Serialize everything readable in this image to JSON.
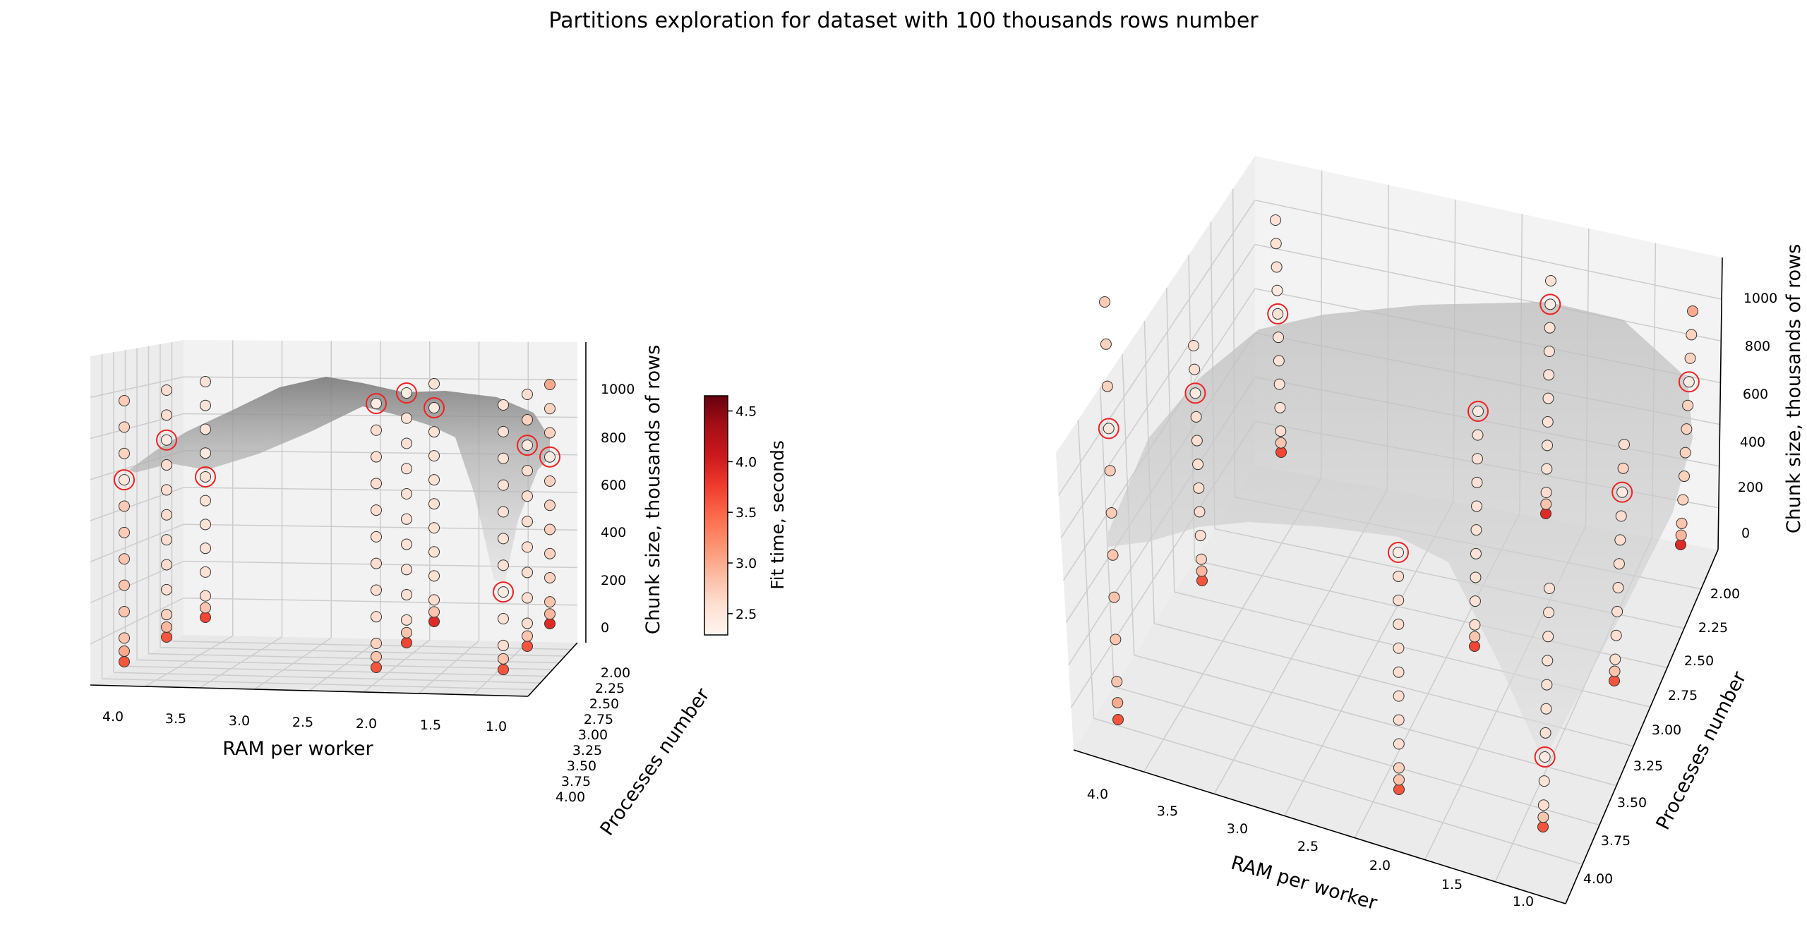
{
  "title": "Partitions exploration for dataset with 100 thousands rows number",
  "chart_data": {
    "type": "scatter3d",
    "title": "Partitions exploration for dataset with 100 thousands rows number",
    "xlabel": "RAM per worker",
    "ylabel": "Processes number",
    "zlabel": "Chunk size, thousands of rows",
    "colorbar_label": "Fit time, seconds",
    "colormap": "Reds",
    "color_range": [
      2.29,
      4.65
    ],
    "colorbar_ticks": [
      "2.5",
      "3.0",
      "3.5",
      "4.0",
      "4.5"
    ],
    "highlight_color": "#ee2222",
    "surface_color": "#808080",
    "x_ticks": [
      "4.0",
      "3.5",
      "3.0",
      "2.5",
      "2.0",
      "1.5",
      "1.0"
    ],
    "y_ticks": [
      "2.00",
      "2.25",
      "2.50",
      "2.75",
      "3.00",
      "3.25",
      "3.50",
      "3.75",
      "4.00"
    ],
    "z_ticks": [
      "0",
      "200",
      "400",
      "600",
      "800",
      "1000"
    ],
    "chunk_sizes": [
      10,
      50,
      100,
      200,
      300,
      400,
      500,
      600,
      700,
      800,
      900,
      1000
    ],
    "columns": [
      {
        "ram": 4,
        "processes": 4,
        "best_chunk": 700,
        "fit_times": [
          3.6,
          3.0,
          2.8,
          2.8,
          2.8,
          2.8,
          2.75,
          2.75,
          2.5,
          2.7,
          2.7,
          2.75
        ]
      },
      {
        "ram": 4,
        "processes": 3,
        "best_chunk": 800,
        "fit_times": [
          3.6,
          2.9,
          2.7,
          2.6,
          2.6,
          2.6,
          2.6,
          2.6,
          2.6,
          2.45,
          2.6,
          2.6
        ]
      },
      {
        "ram": 4,
        "processes": 2,
        "best_chunk": 600,
        "fit_times": [
          3.7,
          2.8,
          2.6,
          2.55,
          2.55,
          2.55,
          2.55,
          2.55,
          2.45,
          2.55,
          2.55,
          2.55
        ]
      },
      {
        "ram": 2,
        "processes": 4,
        "best_chunk": 1000,
        "fit_times": [
          3.6,
          2.8,
          2.7,
          2.6,
          2.6,
          2.6,
          2.6,
          2.6,
          2.6,
          2.6,
          2.6,
          2.45
        ]
      },
      {
        "ram": 2,
        "processes": 3,
        "best_chunk": 1000,
        "fit_times": [
          3.7,
          2.8,
          2.6,
          2.55,
          2.55,
          2.55,
          2.55,
          2.55,
          2.55,
          2.55,
          2.55,
          2.45
        ]
      },
      {
        "ram": 2,
        "processes": 2,
        "best_chunk": 900,
        "fit_times": [
          3.9,
          2.8,
          2.6,
          2.55,
          2.55,
          2.55,
          2.55,
          2.55,
          2.55,
          2.55,
          2.45,
          2.55
        ]
      },
      {
        "ram": 1,
        "processes": 4,
        "best_chunk": 300,
        "fit_times": [
          3.6,
          2.8,
          2.6,
          2.55,
          2.45,
          2.55,
          2.55,
          2.55,
          2.55,
          2.55,
          2.55,
          2.55
        ]
      },
      {
        "ram": 1,
        "processes": 3,
        "best_chunk": 800,
        "fit_times": [
          3.6,
          2.8,
          2.6,
          2.6,
          2.6,
          2.6,
          2.6,
          2.6,
          2.6,
          2.45,
          2.7,
          2.6
        ]
      },
      {
        "ram": 1,
        "processes": 2,
        "best_chunk": 700,
        "fit_times": [
          3.9,
          2.9,
          2.8,
          2.7,
          2.7,
          2.7,
          2.7,
          2.7,
          2.45,
          2.7,
          2.7,
          3.0
        ]
      }
    ]
  }
}
